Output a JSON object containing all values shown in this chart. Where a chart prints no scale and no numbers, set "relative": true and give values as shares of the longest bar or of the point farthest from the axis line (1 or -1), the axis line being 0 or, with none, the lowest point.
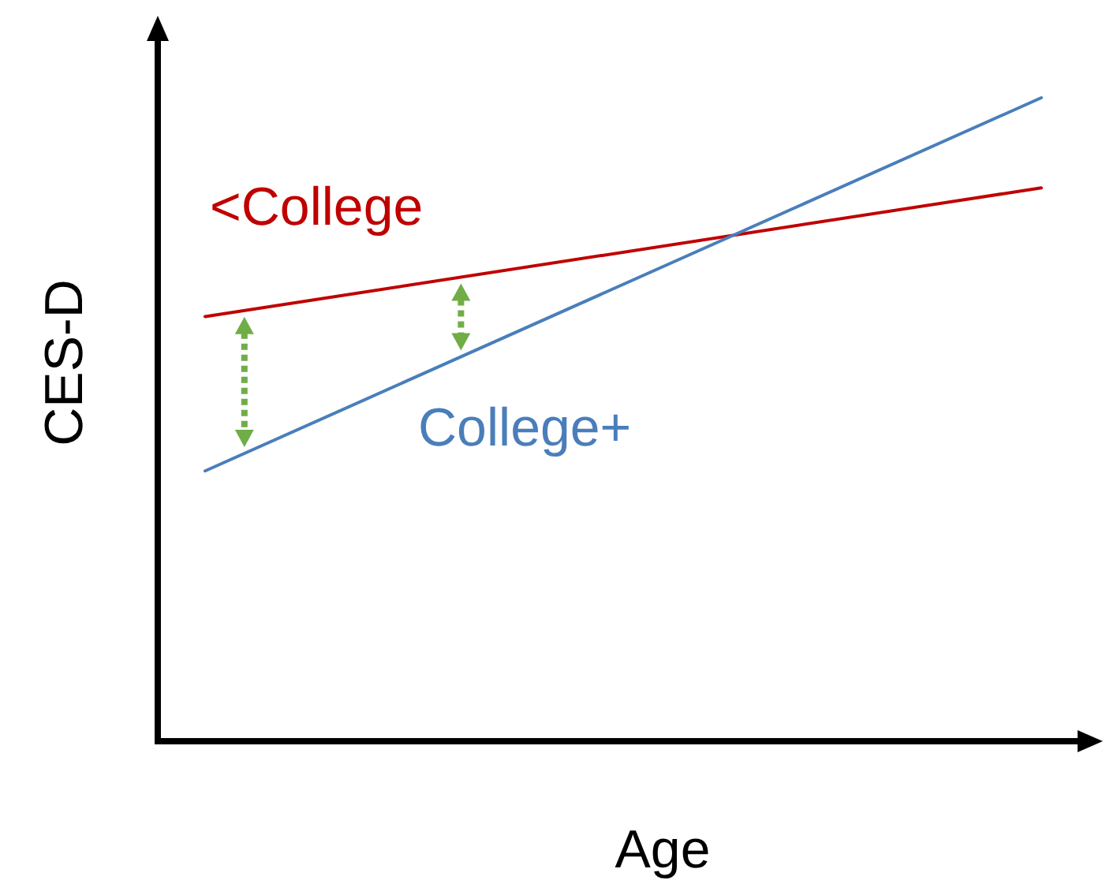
{
  "chart_data": {
    "type": "line",
    "relative": true,
    "xlabel": "Age",
    "ylabel": "CES-D",
    "categories": [
      null,
      null
    ],
    "series": [
      {
        "name": "<College",
        "color": "#c00000",
        "values": [
          0.66,
          0.86
        ]
      },
      {
        "name": "College+",
        "color": "#4a7ebb",
        "values": [
          0.42,
          1
        ]
      }
    ]
  }
}
